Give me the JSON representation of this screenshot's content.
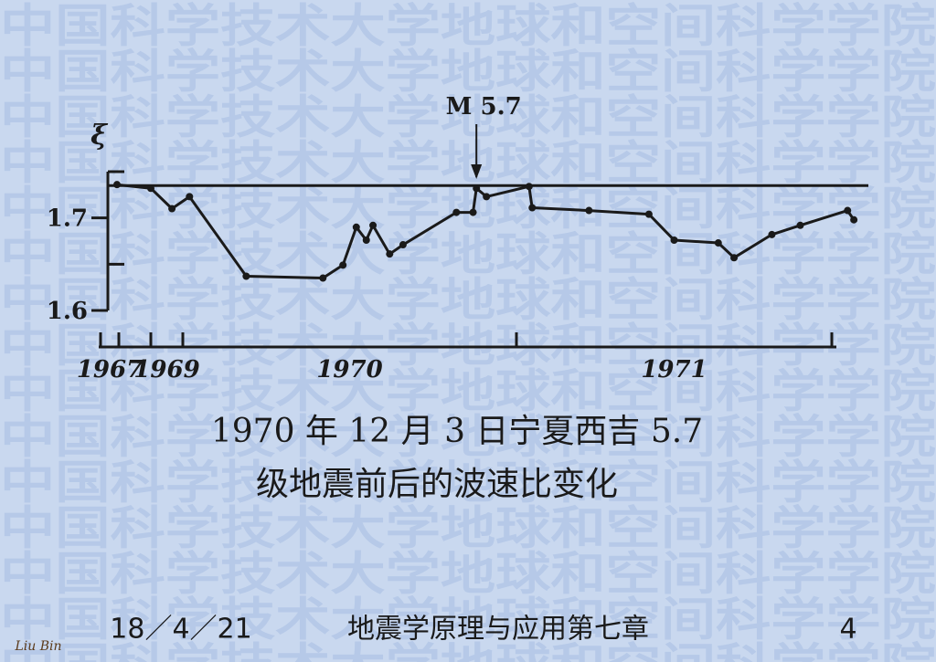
{
  "watermark": "中国科学技术大学地球和空间科学学院",
  "chart_data": {
    "type": "line",
    "y_axis_label": "ξ",
    "annotation": {
      "text": "M 5.7",
      "x": 1970.88
    },
    "reference_line": 1.735,
    "x": [
      1967.9,
      1969.0,
      1969.66,
      1970.02,
      1970.19,
      1970.42,
      1970.48,
      1970.52,
      1970.55,
      1970.57,
      1970.62,
      1970.66,
      1970.82,
      1970.87,
      1970.88,
      1970.91,
      1971.04,
      1971.05,
      1971.23,
      1971.42,
      1971.5,
      1971.64,
      1971.69,
      1971.81,
      1971.9,
      1972.05,
      1972.07
    ],
    "series": [
      {
        "color": "#1a1a1a",
        "values": [
          1.736,
          1.732,
          1.71,
          1.723,
          1.637,
          1.635,
          1.649,
          1.69,
          1.676,
          1.692,
          1.661,
          1.671,
          1.706,
          1.706,
          1.732,
          1.723,
          1.734,
          1.711,
          1.708,
          1.704,
          1.676,
          1.673,
          1.657,
          1.682,
          1.692,
          1.708,
          1.698
        ]
      }
    ],
    "ylim": [
      1.6,
      1.75
    ],
    "yticks": [
      1.6,
      1.7
    ],
    "minor_yticks": [
      1.65,
      1.75
    ],
    "xticks": [
      1967,
      1968,
      1969,
      1970,
      1971,
      1972
    ],
    "year_labels": [
      1967,
      1969,
      1970,
      1971
    ]
  },
  "caption": [
    "1970 年 12 月 3 日宁夏西吉  5.7",
    "级地震前后的波速比变化"
  ],
  "footer": {
    "date": "18／4／21",
    "title": "地震学原理与应用第七章",
    "page": "4",
    "signature": "Liu Bin"
  }
}
